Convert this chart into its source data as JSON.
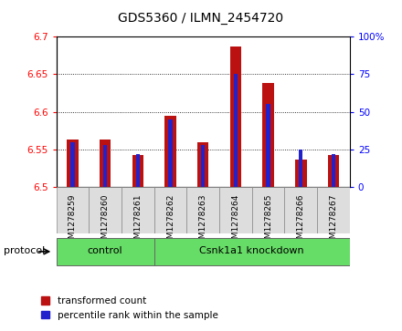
{
  "title": "GDS5360 / ILMN_2454720",
  "samples": [
    "GSM1278259",
    "GSM1278260",
    "GSM1278261",
    "GSM1278262",
    "GSM1278263",
    "GSM1278264",
    "GSM1278265",
    "GSM1278266",
    "GSM1278267"
  ],
  "transformed_counts": [
    6.563,
    6.563,
    6.543,
    6.595,
    6.56,
    6.686,
    6.638,
    6.537,
    6.542
  ],
  "percentile_ranks": [
    30,
    28,
    22,
    45,
    28,
    75,
    55,
    25,
    22
  ],
  "ylim_left": [
    6.5,
    6.7
  ],
  "ylim_right": [
    0,
    100
  ],
  "yticks_left": [
    6.5,
    6.55,
    6.6,
    6.65,
    6.7
  ],
  "yticks_right": [
    0,
    25,
    50,
    75,
    100
  ],
  "control_indices": [
    0,
    1,
    2
  ],
  "knockdown_indices": [
    3,
    4,
    5,
    6,
    7,
    8
  ],
  "control_label": "control",
  "knockdown_label": "Csnk1a1 knockdown",
  "protocol_label": "protocol",
  "bar_color_red": "#BB1111",
  "bar_color_blue": "#2222CC",
  "green_color": "#66DD66",
  "gray_cell_color": "#DDDDDD",
  "bar_width": 0.35,
  "blue_bar_width": 0.12,
  "title_fontsize": 10,
  "tick_fontsize": 7.5
}
